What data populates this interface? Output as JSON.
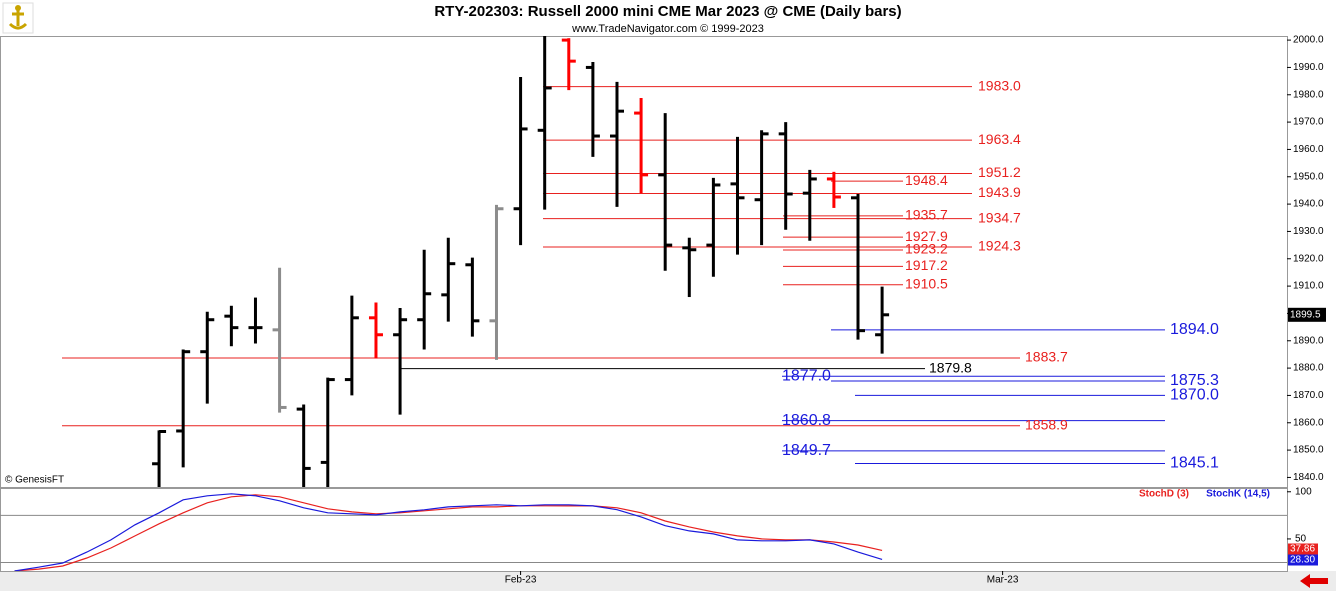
{
  "chart_data": [
    {
      "type": "ohlc",
      "title": "RTY-202303:  Russell 2000 mini CME Mar 2023 @ CME  (Daily bars)",
      "subtitle": "www.TradeNavigator.com © 1999-2023",
      "watermark": "© GenesisFT",
      "x": [
        0,
        1,
        2,
        3,
        4,
        5,
        6,
        7,
        8,
        9,
        10,
        11,
        12,
        13,
        14,
        15,
        16,
        17,
        18,
        19,
        20,
        21,
        22,
        23,
        24,
        25,
        26,
        27,
        28,
        29,
        30
      ],
      "open": [
        1845,
        1857,
        1886,
        1899,
        1894.8,
        1894,
        1865,
        1845.5,
        1875.8,
        1898.4,
        1892.2,
        1897.7,
        1906.8,
        1917.8,
        1897.3,
        1938.3,
        1967,
        2000,
        1990,
        1964.9,
        1973.3,
        1950.7,
        1924,
        1925,
        1947.4,
        1941.6,
        1965.7,
        1944,
        1949.2,
        1942.3,
        1892.2
      ],
      "high": [
        1857.2,
        1886.8,
        1900.6,
        1902.8,
        1905.8,
        1916.7,
        1866.7,
        1876.5,
        1906.5,
        1904,
        1902,
        1923.3,
        1927.7,
        1920.4,
        1939.7,
        1986.5,
        2001.5,
        2000.7,
        1992,
        1984.7,
        1978.8,
        1973.3,
        1927.7,
        1949.6,
        1964.6,
        1967,
        1970,
        1952.5,
        1951.8,
        1943.7,
        1909.8
      ],
      "low": [
        1830,
        1843.7,
        1867,
        1888,
        1889,
        1863.7,
        1830,
        1830,
        1870,
        1883.5,
        1863,
        1886.8,
        1897,
        1891.5,
        1883,
        1925,
        1938,
        1981.7,
        1957.3,
        1939,
        1944,
        1915.6,
        1906,
        1913.4,
        1921.5,
        1925,
        1930.6,
        1926.6,
        1938.6,
        1890.4,
        1885.3
      ],
      "close": [
        1856.8,
        1886,
        1897.7,
        1894.8,
        1894.8,
        1865.6,
        1843.3,
        1875.8,
        1898.4,
        1892.2,
        1897.7,
        1907.2,
        1918.2,
        1897.3,
        1938.3,
        1967.5,
        1982.5,
        1992.3,
        1964.9,
        1974,
        1950.7,
        1925,
        1923.3,
        1947,
        1942.3,
        1965.7,
        1943.7,
        1949.2,
        1942.6,
        1893.7,
        1899.5
      ],
      "colors": [
        "#000000",
        "#000000",
        "#000000",
        "#000000",
        "#000000",
        "#8c8c8c",
        "#000000",
        "#000000",
        "#000000",
        "#ff0000",
        "#000000",
        "#000000",
        "#000000",
        "#000000",
        "#8c8c8c",
        "#000000",
        "#000000",
        "#ff0000",
        "#000000",
        "#000000",
        "#ff0000",
        "#000000",
        "#000000",
        "#000000",
        "#000000",
        "#000000",
        "#000000",
        "#000000",
        "#ff0000",
        "#000000",
        "#000000"
      ],
      "xlim": [
        -6.6,
        46.8
      ],
      "ylim": [
        1836.5,
        2001.5
      ],
      "yticks": [
        {
          "value": 1840,
          "label": "1840.0"
        },
        {
          "value": 1850,
          "label": "1850.0"
        },
        {
          "value": 1860,
          "label": "1860.0"
        },
        {
          "value": 1870,
          "label": "1870.0"
        },
        {
          "value": 1880,
          "label": "1880.0"
        },
        {
          "value": 1890,
          "label": "1890.0"
        },
        {
          "value": 1900,
          "label": "1900.0"
        },
        {
          "value": 1910,
          "label": "1910.0"
        },
        {
          "value": 1920,
          "label": "1920.0"
        },
        {
          "value": 1930,
          "label": "1930.0"
        },
        {
          "value": 1940,
          "label": "1940.0"
        },
        {
          "value": 1950,
          "label": "1950.0"
        },
        {
          "value": 1960,
          "label": "1960.0"
        },
        {
          "value": 1970,
          "label": "1970.0"
        },
        {
          "value": 1980,
          "label": "1980.0"
        },
        {
          "value": 1990,
          "label": "1990.0"
        },
        {
          "value": 2000,
          "label": "2000.0"
        }
      ],
      "levels": [
        {
          "value": 1983,
          "label": "1983.0",
          "color": "#e8211f"
        },
        {
          "value": 1963.4,
          "label": "1963.4",
          "color": "#e8211f"
        },
        {
          "value": 1951.2,
          "label": "1951.2",
          "color": "#e8211f"
        },
        {
          "value": 1948.4,
          "label": "1948.4",
          "color": "#e8211f"
        },
        {
          "value": 1943.9,
          "label": "1943.9",
          "color": "#e8211f"
        },
        {
          "value": 1935.7,
          "label": "1935.7",
          "color": "#e8211f"
        },
        {
          "value": 1934.7,
          "label": "1934.7",
          "color": "#e8211f"
        },
        {
          "value": 1927.9,
          "label": "1927.9",
          "color": "#e8211f"
        },
        {
          "value": 1924.3,
          "label": "1924.3",
          "color": "#e8211f"
        },
        {
          "value": 1923.2,
          "label": "1923.2",
          "color": "#e8211f"
        },
        {
          "value": 1917.2,
          "label": "1917.2",
          "color": "#e8211f"
        },
        {
          "value": 1910.5,
          "label": "1910.5",
          "color": "#e8211f"
        },
        {
          "value": 1894,
          "label": "1894.0",
          "color": "#1a1adc"
        },
        {
          "value": 1883.7,
          "label": "1883.7",
          "color": "#e8211f"
        },
        {
          "value": 1879.8,
          "label": "1879.8",
          "color": "#000000"
        },
        {
          "value": 1877,
          "label": "1877.0",
          "color": "#1a1adc"
        },
        {
          "value": 1875.3,
          "label": "1875.3",
          "color": "#1a1adc"
        },
        {
          "value": 1870,
          "label": "1870.0",
          "color": "#1a1adc"
        },
        {
          "value": 1860.8,
          "label": "1860.8",
          "color": "#1a1adc"
        },
        {
          "value": 1858.9,
          "label": "1858.9",
          "color": "#e8211f"
        },
        {
          "value": 1849.7,
          "label": "1849.7",
          "color": "#1a1adc"
        },
        {
          "value": 1845.1,
          "label": "1845.1",
          "color": "#1a1adc"
        }
      ]
    },
    {
      "type": "line",
      "x": [
        -6,
        -5,
        -4,
        -3,
        -2,
        -1,
        0,
        1,
        2,
        3,
        4,
        5,
        6,
        7,
        8,
        9,
        10,
        11,
        12,
        13,
        14,
        15,
        16,
        17,
        18,
        19,
        20,
        21,
        22,
        23,
        24,
        25,
        26,
        27,
        28,
        29,
        30
      ],
      "xlim": [
        -6.6,
        46.8
      ],
      "xticks": [
        {
          "value": 15,
          "label": "Feb-23"
        },
        {
          "value": 35,
          "label": "Mar-23"
        }
      ],
      "ylim": [
        16,
        104
      ],
      "yticks": [
        50,
        100
      ],
      "grid_levels": [
        25,
        75
      ],
      "series": [
        {
          "name": "StochD (3)",
          "color": "#e8211f",
          "values": [
            16,
            18,
            21.3,
            29.8,
            40.4,
            53.2,
            66,
            77.7,
            88.3,
            94.7,
            96.8,
            94.7,
            88.3,
            81.9,
            78.7,
            76.6,
            77.7,
            79.8,
            81.9,
            84,
            84,
            85.1,
            85.1,
            85,
            85,
            83,
            77.7,
            69,
            62.8,
            57.4,
            53.2,
            50,
            49,
            49,
            46.8,
            43.6,
            37.86
          ]
        },
        {
          "name": "StochK (14,5)",
          "color": "#1a1adc",
          "last_label": "28.30",
          "values": [
            16,
            20,
            24.5,
            36,
            49,
            65,
            77.7,
            91.5,
            95.7,
            97.9,
            95.7,
            90.4,
            83,
            77.7,
            76.6,
            75.5,
            78.7,
            80.9,
            84,
            85.1,
            86.2,
            85.1,
            86.2,
            86.2,
            85,
            81,
            73.4,
            64,
            58.5,
            55.3,
            49,
            48,
            48,
            49,
            44.7,
            36,
            28.3
          ]
        }
      ]
    }
  ]
}
